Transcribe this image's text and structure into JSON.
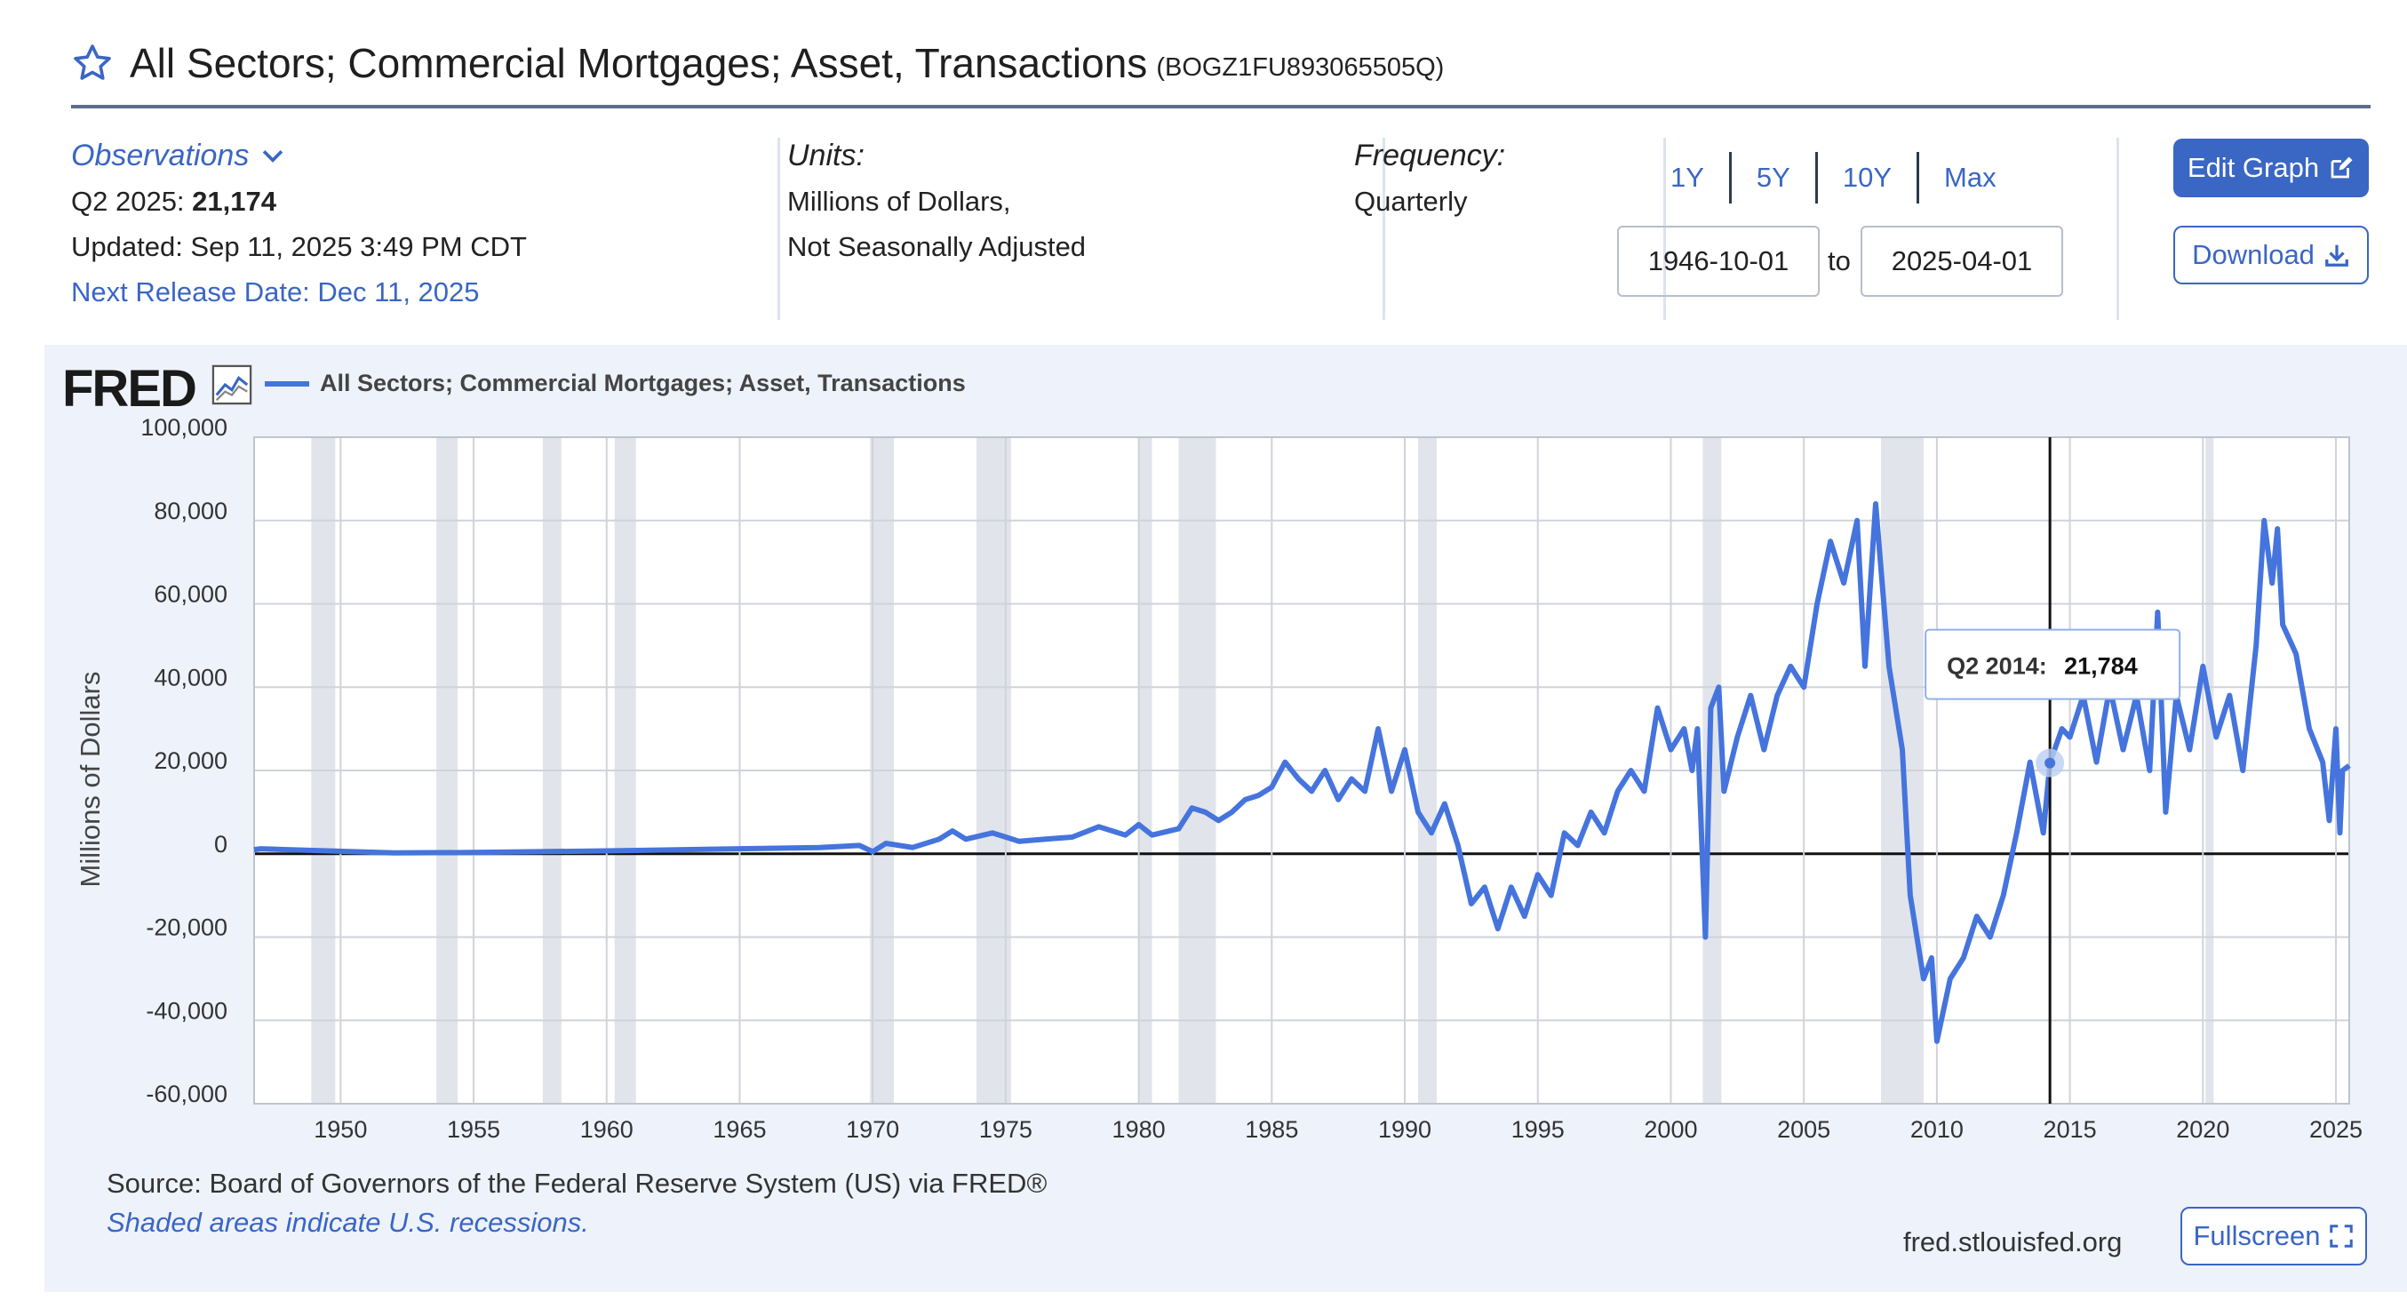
{
  "header": {
    "title": "All Sectors; Commercial Mortgages; Asset, Transactions",
    "series_id": "(BOGZ1FU893065505Q)"
  },
  "observations": {
    "label": "Observations",
    "latest_period": "Q2 2025:",
    "latest_value": "21,174",
    "updated": "Updated: Sep 11, 2025 3:49 PM CDT",
    "next_release": "Next Release Date: Dec 11, 2025"
  },
  "units": {
    "label": "Units:",
    "line1": "Millions of Dollars,",
    "line2": "Not Seasonally Adjusted"
  },
  "frequency": {
    "label": "Frequency:",
    "value": "Quarterly"
  },
  "range": {
    "buttons": [
      "1Y",
      "5Y",
      "10Y",
      "Max"
    ],
    "start": "1946-10-01",
    "to": "to",
    "end": "2025-04-01"
  },
  "actions": {
    "edit_graph": "Edit Graph",
    "download": "Download",
    "fullscreen": "Fullscreen"
  },
  "graph": {
    "logo": "FRED",
    "source": "Source: Board of Governors of the Federal Reserve System (US) via FRED®",
    "recession_note": "Shaded areas indicate U.S. recessions.",
    "site": "fred.stlouisfed.org"
  },
  "colors": {
    "accent": "#3a66c4",
    "series": "#4574dd",
    "recession": "#e1e4ea",
    "panel": "#eef2fa"
  },
  "chart_data": {
    "type": "line",
    "legend": "All Sectors; Commercial Mortgages; Asset, Transactions",
    "ylabel": "Millions of Dollars",
    "ylim": [
      -60000,
      100000
    ],
    "xlim": [
      1946.75,
      2025.5
    ],
    "y_ticks": [
      -60000,
      -40000,
      -20000,
      0,
      20000,
      40000,
      60000,
      80000,
      100000
    ],
    "y_tick_labels": [
      "-60,000",
      "-40,000",
      "-20,000",
      "0",
      "20,000",
      "40,000",
      "60,000",
      "80,000",
      "100,000"
    ],
    "x_ticks": [
      1950,
      1955,
      1960,
      1965,
      1970,
      1975,
      1980,
      1985,
      1990,
      1995,
      2000,
      2005,
      2010,
      2015,
      2020,
      2025
    ],
    "x_tick_labels": [
      "1950",
      "1955",
      "1960",
      "1965",
      "1970",
      "1975",
      "1980",
      "1985",
      "1990",
      "1995",
      "2000",
      "2005",
      "2010",
      "2015",
      "2020",
      "2025"
    ],
    "grid": true,
    "legend_position": "top-left",
    "recessions": [
      [
        1948.9,
        1949.8
      ],
      [
        1953.6,
        1954.4
      ],
      [
        1957.6,
        1958.3
      ],
      [
        1960.3,
        1961.1
      ],
      [
        1969.9,
        1970.8
      ],
      [
        1973.9,
        1975.2
      ],
      [
        1980.0,
        1980.5
      ],
      [
        1981.5,
        1982.9
      ],
      [
        1990.5,
        1991.2
      ],
      [
        2001.2,
        2001.9
      ],
      [
        2007.9,
        2009.5
      ],
      [
        2020.1,
        2020.4
      ]
    ],
    "series": [
      {
        "name": "All Sectors; Commercial Mortgages; Asset, Transactions",
        "points": [
          [
            1946.75,
            1000
          ],
          [
            1947.0,
            1200
          ],
          [
            1947.5,
            1100
          ],
          [
            1948.0,
            1000
          ],
          [
            1952.0,
            200
          ],
          [
            1955.0,
            300
          ],
          [
            1960.0,
            700
          ],
          [
            1965.0,
            1200
          ],
          [
            1968.0,
            1500
          ],
          [
            1969.5,
            2000
          ],
          [
            1970.0,
            500
          ],
          [
            1970.5,
            2500
          ],
          [
            1971.5,
            1500
          ],
          [
            1972.5,
            3500
          ],
          [
            1973.0,
            5500
          ],
          [
            1973.5,
            3500
          ],
          [
            1974.5,
            5000
          ],
          [
            1975.5,
            3000
          ],
          [
            1976.5,
            3500
          ],
          [
            1977.5,
            4000
          ],
          [
            1978.5,
            6500
          ],
          [
            1979.5,
            4500
          ],
          [
            1980.0,
            7000
          ],
          [
            1980.5,
            4500
          ],
          [
            1981.5,
            6000
          ],
          [
            1982.0,
            11000
          ],
          [
            1982.5,
            10000
          ],
          [
            1983.0,
            8000
          ],
          [
            1983.5,
            10000
          ],
          [
            1984.0,
            13000
          ],
          [
            1984.5,
            14000
          ],
          [
            1985.0,
            16000
          ],
          [
            1985.5,
            22000
          ],
          [
            1986.0,
            18000
          ],
          [
            1986.5,
            15000
          ],
          [
            1987.0,
            20000
          ],
          [
            1987.5,
            13000
          ],
          [
            1988.0,
            18000
          ],
          [
            1988.5,
            15000
          ],
          [
            1989.0,
            30000
          ],
          [
            1989.5,
            15000
          ],
          [
            1990.0,
            25000
          ],
          [
            1990.5,
            10000
          ],
          [
            1991.0,
            5000
          ],
          [
            1991.5,
            12000
          ],
          [
            1992.0,
            2000
          ],
          [
            1992.5,
            -12000
          ],
          [
            1993.0,
            -8000
          ],
          [
            1993.5,
            -18000
          ],
          [
            1994.0,
            -8000
          ],
          [
            1994.5,
            -15000
          ],
          [
            1995.0,
            -5000
          ],
          [
            1995.5,
            -10000
          ],
          [
            1996.0,
            5000
          ],
          [
            1996.5,
            2000
          ],
          [
            1997.0,
            10000
          ],
          [
            1997.5,
            5000
          ],
          [
            1998.0,
            15000
          ],
          [
            1998.5,
            20000
          ],
          [
            1999.0,
            15000
          ],
          [
            1999.5,
            35000
          ],
          [
            2000.0,
            25000
          ],
          [
            2000.5,
            30000
          ],
          [
            2000.8,
            20000
          ],
          [
            2001.0,
            30000
          ],
          [
            2001.3,
            -20000
          ],
          [
            2001.5,
            35000
          ],
          [
            2001.8,
            40000
          ],
          [
            2002.0,
            15000
          ],
          [
            2002.5,
            28000
          ],
          [
            2003.0,
            38000
          ],
          [
            2003.5,
            25000
          ],
          [
            2004.0,
            38000
          ],
          [
            2004.5,
            45000
          ],
          [
            2005.0,
            40000
          ],
          [
            2005.5,
            60000
          ],
          [
            2006.0,
            75000
          ],
          [
            2006.5,
            65000
          ],
          [
            2007.0,
            80000
          ],
          [
            2007.3,
            45000
          ],
          [
            2007.7,
            84000
          ],
          [
            2008.2,
            45000
          ],
          [
            2008.7,
            25000
          ],
          [
            2009.0,
            -10000
          ],
          [
            2009.5,
            -30000
          ],
          [
            2009.8,
            -25000
          ],
          [
            2010.0,
            -45000
          ],
          [
            2010.5,
            -30000
          ],
          [
            2011.0,
            -25000
          ],
          [
            2011.5,
            -15000
          ],
          [
            2012.0,
            -20000
          ],
          [
            2012.5,
            -10000
          ],
          [
            2013.0,
            5000
          ],
          [
            2013.5,
            22000
          ],
          [
            2014.0,
            5000
          ],
          [
            2014.25,
            21784
          ],
          [
            2014.7,
            30000
          ],
          [
            2015.0,
            28000
          ],
          [
            2015.5,
            38000
          ],
          [
            2016.0,
            22000
          ],
          [
            2016.5,
            40000
          ],
          [
            2017.0,
            25000
          ],
          [
            2017.5,
            38000
          ],
          [
            2018.0,
            20000
          ],
          [
            2018.3,
            58000
          ],
          [
            2018.6,
            10000
          ],
          [
            2019.0,
            38000
          ],
          [
            2019.5,
            25000
          ],
          [
            2020.0,
            45000
          ],
          [
            2020.5,
            28000
          ],
          [
            2021.0,
            38000
          ],
          [
            2021.5,
            20000
          ],
          [
            2022.0,
            50000
          ],
          [
            2022.3,
            80000
          ],
          [
            2022.6,
            65000
          ],
          [
            2022.8,
            78000
          ],
          [
            2023.0,
            55000
          ],
          [
            2023.5,
            48000
          ],
          [
            2024.0,
            30000
          ],
          [
            2024.5,
            22000
          ],
          [
            2024.75,
            8000
          ],
          [
            2025.0,
            30000
          ],
          [
            2025.15,
            5000
          ],
          [
            2025.25,
            20000
          ],
          [
            2025.5,
            21174
          ]
        ]
      }
    ],
    "tooltip": {
      "period": "Q2 2014:",
      "value": "21,784",
      "x": 2014.25,
      "y": 21784
    }
  }
}
